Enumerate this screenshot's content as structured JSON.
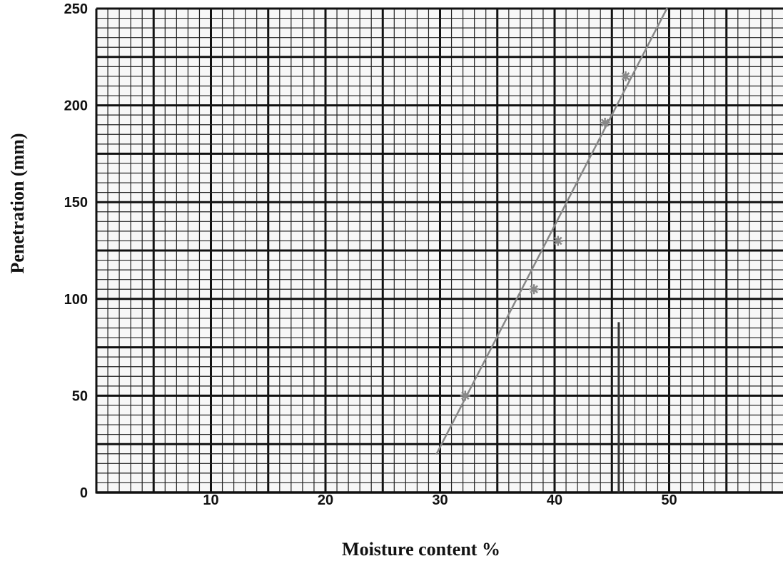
{
  "chart_data": {
    "type": "scatter",
    "title": "",
    "xlabel": "Moisture content %",
    "ylabel": "Penetration (mm)",
    "xlim": [
      0,
      60
    ],
    "ylim": [
      0,
      250
    ],
    "x_ticks": [
      10,
      20,
      30,
      40,
      50
    ],
    "y_ticks": [
      0,
      50,
      100,
      150,
      200,
      250
    ],
    "grid": true,
    "series": [
      {
        "type": "scatter",
        "marker": "asterisk",
        "points": [
          {
            "x": 32.2,
            "y": 50
          },
          {
            "x": 38.2,
            "y": 105
          },
          {
            "x": 40.3,
            "y": 130
          },
          {
            "x": 44.4,
            "y": 191
          },
          {
            "x": 46.2,
            "y": 215
          }
        ]
      },
      {
        "type": "line",
        "points": [
          {
            "x": 29.7,
            "y": 20
          },
          {
            "x": 49.8,
            "y": 250
          }
        ]
      },
      {
        "type": "vertical-marker",
        "x": 45.6,
        "y_range": [
          0,
          88
        ]
      }
    ]
  },
  "colors": {
    "grid_major": "#111111",
    "grid_minor": "#222222",
    "data": "#888888",
    "marker_line": "#333333"
  }
}
